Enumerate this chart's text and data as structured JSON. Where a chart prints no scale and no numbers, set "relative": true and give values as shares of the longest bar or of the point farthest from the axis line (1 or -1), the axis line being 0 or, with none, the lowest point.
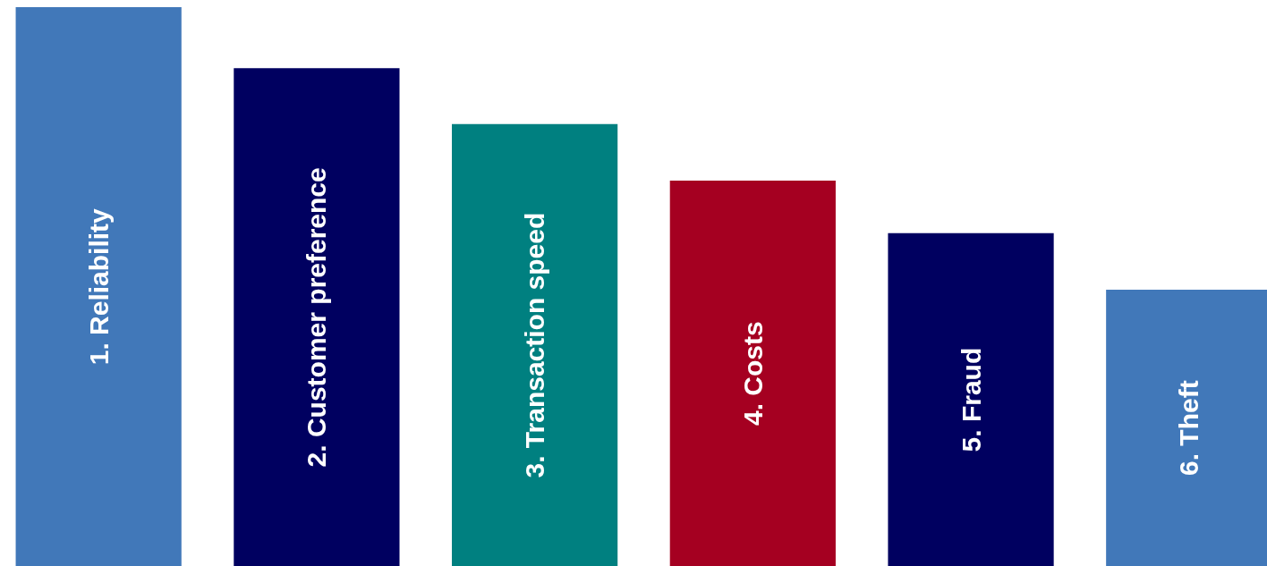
{
  "chart_data": {
    "type": "bar",
    "relative": true,
    "categories": [
      "1. Reliability",
      "2. Customer preference",
      "3. Transaction speed",
      "4. Costs",
      "5. Fraud",
      "6. Theft"
    ],
    "values": [
      1,
      0.891,
      0.791,
      0.69,
      0.596,
      0.495
    ],
    "colors": [
      "#4178b9",
      "#000060",
      "#008080",
      "#a50021",
      "#000060",
      "#4178b9"
    ]
  }
}
